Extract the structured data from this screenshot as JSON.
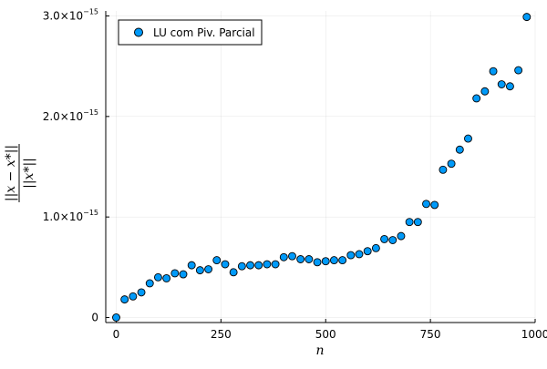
{
  "chart_data": {
    "type": "scatter",
    "title": "",
    "xlabel": "n",
    "ylabel": {
      "numerator": "||x − x*||",
      "denominator": "||x*||"
    },
    "xlim": [
      -25,
      1000
    ],
    "ylim": [
      -0.05,
      3.05
    ],
    "y_unit_multiplier": "1e-15",
    "x_ticks": [
      {
        "value": 0,
        "label": "0"
      },
      {
        "value": 250,
        "label": "250"
      },
      {
        "value": 500,
        "label": "500"
      },
      {
        "value": 750,
        "label": "750"
      },
      {
        "value": 1000,
        "label": "1000"
      }
    ],
    "y_ticks": [
      {
        "value": 0,
        "label": "0",
        "exp": ""
      },
      {
        "value": 1,
        "label": "1.0×10",
        "exp": "−15"
      },
      {
        "value": 2,
        "label": "2.0×10",
        "exp": "−15"
      },
      {
        "value": 3,
        "label": "3.0×10",
        "exp": "−15"
      }
    ],
    "grid": true,
    "legend_position": "top-left",
    "series": [
      {
        "name": "LU com Piv. Parcial",
        "color": "#009AF9",
        "x": [
          0,
          20,
          40,
          60,
          80,
          100,
          120,
          140,
          160,
          180,
          200,
          220,
          240,
          260,
          280,
          300,
          320,
          340,
          360,
          380,
          400,
          420,
          440,
          460,
          480,
          500,
          520,
          540,
          560,
          580,
          600,
          620,
          640,
          660,
          680,
          700,
          720,
          740,
          760,
          780,
          800,
          820,
          840,
          860,
          880,
          900,
          920,
          940,
          960,
          980
        ],
        "y": [
          0.0,
          0.18,
          0.21,
          0.25,
          0.34,
          0.4,
          0.39,
          0.44,
          0.43,
          0.52,
          0.47,
          0.48,
          0.57,
          0.53,
          0.45,
          0.51,
          0.52,
          0.52,
          0.53,
          0.53,
          0.6,
          0.61,
          0.58,
          0.58,
          0.55,
          0.56,
          0.57,
          0.57,
          0.62,
          0.63,
          0.66,
          0.69,
          0.78,
          0.77,
          0.81,
          0.95,
          0.95,
          1.13,
          1.12,
          1.47,
          1.53,
          1.67,
          1.78,
          2.18,
          2.25,
          2.45,
          2.32,
          2.3,
          2.46,
          2.99
        ]
      }
    ]
  }
}
